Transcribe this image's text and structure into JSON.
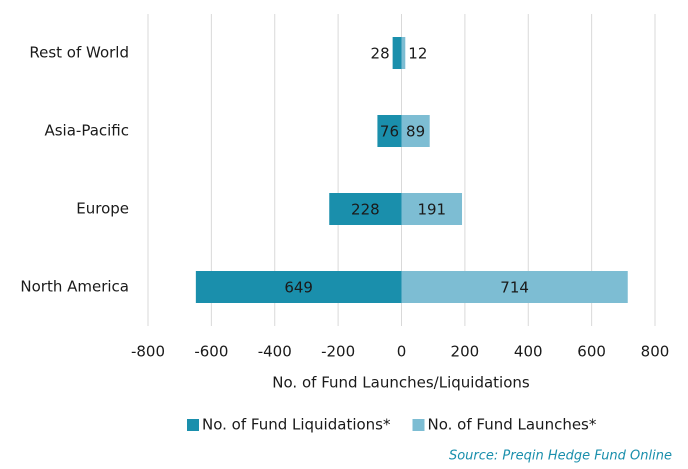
{
  "chart_data": {
    "type": "diverging-bar",
    "categories": [
      "Rest of World",
      "Asia-Pacific",
      "Europe",
      "North America"
    ],
    "series": [
      {
        "name": "No. of Fund Liquidations*",
        "color": "#1a8fac",
        "values": [
          -28,
          -76,
          -228,
          -649
        ],
        "value_labels": [
          "28",
          "76",
          "228",
          "649"
        ]
      },
      {
        "name": "No. of Fund Launches*",
        "color": "#7dbdd3",
        "values": [
          12,
          89,
          191,
          714
        ]
      }
    ],
    "x_label": "No. of Fund Launches/Liquidations",
    "xlim": [
      -800,
      800
    ],
    "xticks": [
      -800,
      -600,
      -400,
      -200,
      0,
      200,
      400,
      600,
      800
    ],
    "grid": true,
    "legend": "bottom",
    "source": "Source: Preqin Hedge Fund Online"
  }
}
